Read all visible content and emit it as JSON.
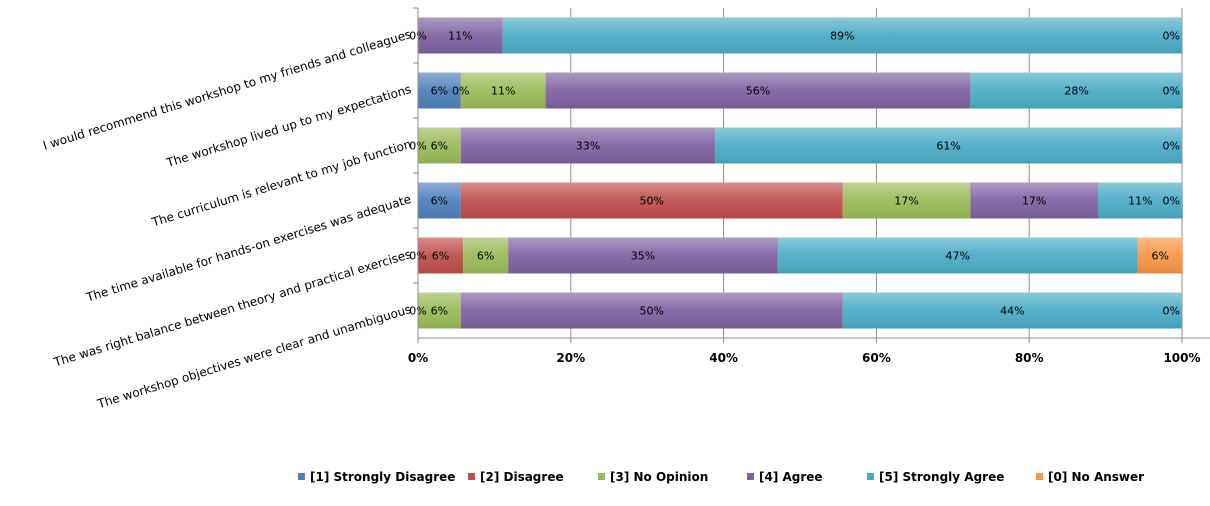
{
  "chart_data": {
    "type": "bar",
    "orientation": "horizontal",
    "stacked": "percent",
    "categories": [
      "I would recommend this workshop to my friends and colleagues",
      "The workshop lived up to my expectations",
      "The curriculum is relevant to my job function",
      "The time available for hands-on exercises was adequate",
      "The was right balance between theory and practical exercises",
      "The workshop objectives were clear and unambiguous"
    ],
    "series": [
      {
        "name": "[1] Strongly Disagree",
        "color": "#4f81bd",
        "values": [
          0,
          5.6,
          0,
          5.6,
          0,
          0
        ],
        "labels": [
          "0%",
          "6%",
          "0%",
          "6%",
          "0%",
          "0%"
        ]
      },
      {
        "name": "[2] Disagree",
        "color": "#c0504d",
        "values": [
          0,
          0,
          0,
          50,
          5.9,
          0
        ],
        "labels": [
          "",
          "0%",
          "",
          "50%",
          "6%",
          ""
        ]
      },
      {
        "name": "[3] No Opinion",
        "color": "#9bbb59",
        "values": [
          0,
          11.1,
          5.6,
          16.7,
          5.9,
          5.6
        ],
        "labels": [
          "",
          "11%",
          "6%",
          "17%",
          "6%",
          "6%"
        ]
      },
      {
        "name": "[4] Agree",
        "color": "#8064a2",
        "values": [
          11.1,
          55.6,
          33.3,
          16.7,
          35.3,
          50
        ],
        "labels": [
          "11%",
          "56%",
          "33%",
          "17%",
          "35%",
          "50%"
        ]
      },
      {
        "name": "[5] Strongly Agree",
        "color": "#4bacc6",
        "values": [
          88.9,
          27.8,
          61.1,
          11.1,
          47.1,
          44.4
        ],
        "labels": [
          "89%",
          "28%",
          "61%",
          "11%",
          "47%",
          "44%"
        ]
      },
      {
        "name": "[0] No Answer",
        "color": "#f79646",
        "values": [
          0,
          0,
          0,
          0,
          5.9,
          0
        ],
        "labels": [
          "0%",
          "0%",
          "0%",
          "0%",
          "6%",
          "0%"
        ]
      }
    ],
    "xlim": [
      0,
      100
    ],
    "xticks": [
      "0%",
      "20%",
      "40%",
      "60%",
      "80%",
      "100%"
    ],
    "grid": true,
    "legend_position": "bottom"
  }
}
